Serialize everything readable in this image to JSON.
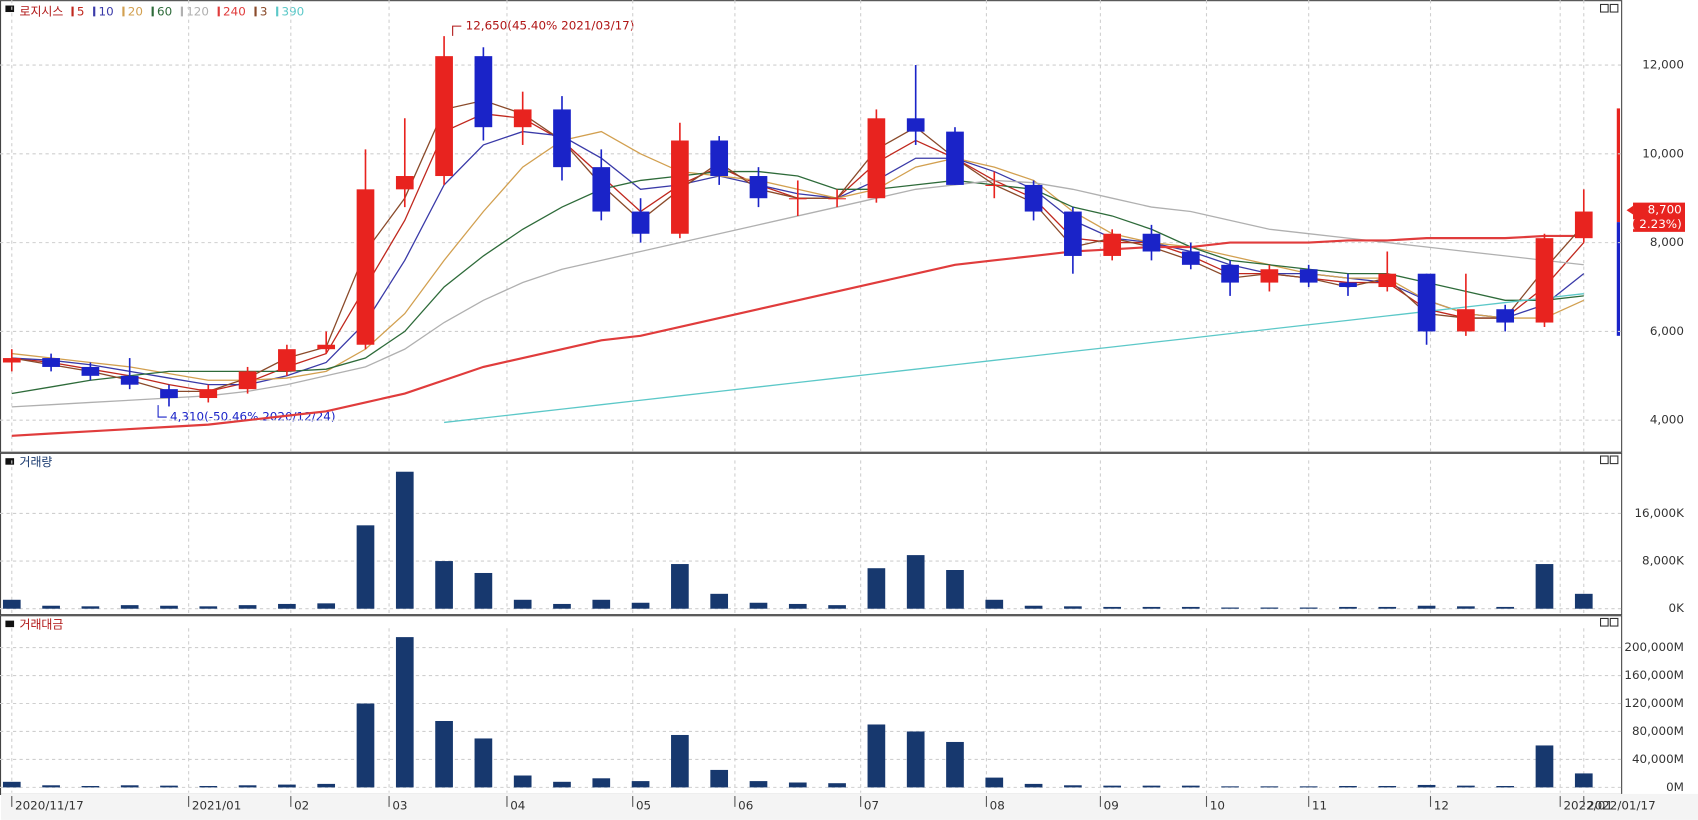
{
  "chart_data": [
    {
      "type": "candlestick",
      "title": "로지시스",
      "xlim": [
        -0.3,
        40.95
      ],
      "open": [
        5300,
        5400,
        5200,
        5000,
        4700,
        4500,
        4700,
        5100,
        5600,
        5700,
        9200,
        9500,
        12200,
        10600,
        11000,
        9700,
        8700,
        8200,
        10300,
        9500,
        9000,
        9000,
        9000,
        10800,
        10500,
        9300,
        9300,
        8700,
        7700,
        8200,
        7800,
        7500,
        7100,
        7400,
        7100,
        7000,
        7300,
        6000,
        6500,
        6200,
        8100
      ],
      "high": [
        5600,
        5500,
        5300,
        5400,
        4800,
        4800,
        5200,
        5700,
        6000,
        10100,
        10800,
        12650,
        12400,
        11400,
        11300,
        10100,
        9000,
        10700,
        10400,
        9700,
        9400,
        9200,
        11000,
        12000,
        10600,
        9600,
        9400,
        8800,
        8300,
        8400,
        8000,
        7600,
        7500,
        7500,
        7300,
        7800,
        7300,
        7300,
        6600,
        8200,
        9200
      ],
      "low": [
        5100,
        5100,
        4900,
        4700,
        4310,
        4400,
        4600,
        5000,
        5500,
        5600,
        8800,
        9300,
        10300,
        10200,
        9400,
        8500,
        8000,
        8100,
        9300,
        8800,
        8600,
        8800,
        8900,
        10200,
        9300,
        9000,
        8500,
        7300,
        7600,
        7600,
        7400,
        6800,
        6900,
        7000,
        6800,
        6900,
        5700,
        5900,
        6000,
        6100,
        8000
      ],
      "close": [
        5400,
        5200,
        5000,
        4800,
        4500,
        4700,
        5100,
        5600,
        5700,
        9200,
        9500,
        12200,
        10600,
        11000,
        9700,
        8700,
        8200,
        10300,
        9500,
        9000,
        9000,
        9000,
        10800,
        10500,
        9300,
        9300,
        8700,
        7700,
        8200,
        7800,
        7500,
        7100,
        7400,
        7100,
        7000,
        7300,
        6000,
        6500,
        6200,
        8100,
        8700
      ],
      "up_color": "#e8231f",
      "down_color": "#1a23c8",
      "series": [
        {
          "name": "5",
          "color": "#c0281e",
          "values": [
            5400,
            5300,
            5150,
            5000,
            4800,
            4650,
            4850,
            5200,
            5500,
            7000,
            8500,
            10500,
            10900,
            10800,
            10300,
            9500,
            8700,
            9300,
            9700,
            9300,
            9000,
            9000,
            9800,
            10300,
            9900,
            9400,
            9000,
            8100,
            8000,
            8000,
            7700,
            7300,
            7300,
            7200,
            7100,
            7100,
            6500,
            6300,
            6300,
            7000,
            8000
          ]
        },
        {
          "name": "10",
          "color": "#3a3aa8",
          "values": [
            5400,
            5350,
            5250,
            5100,
            4950,
            4800,
            4800,
            5000,
            5300,
            6200,
            7600,
            9300,
            10200,
            10500,
            10400,
            9900,
            9200,
            9300,
            9500,
            9300,
            9100,
            9000,
            9400,
            9900,
            9900,
            9600,
            9200,
            8500,
            8100,
            8000,
            7800,
            7500,
            7300,
            7300,
            7200,
            7100,
            6700,
            6400,
            6300,
            6600,
            7300
          ]
        },
        {
          "name": "20",
          "color": "#d2a050",
          "values": [
            5500,
            5400,
            5300,
            5200,
            5050,
            4900,
            4900,
            4950,
            5100,
            5600,
            6400,
            7600,
            8700,
            9700,
            10300,
            10500,
            10000,
            9600,
            9500,
            9400,
            9200,
            9000,
            9200,
            9700,
            9900,
            9700,
            9400,
            8700,
            8200,
            8000,
            7900,
            7700,
            7500,
            7300,
            7200,
            7200,
            6700,
            6400,
            6300,
            6300,
            6700
          ]
        },
        {
          "name": "60",
          "color": "#2e6b3a",
          "values": [
            4600,
            4750,
            4900,
            5000,
            5100,
            5100,
            5100,
            5100,
            5150,
            5400,
            6000,
            7000,
            7700,
            8300,
            8800,
            9200,
            9400,
            9500,
            9600,
            9600,
            9500,
            9200,
            9200,
            9300,
            9400,
            9300,
            9200,
            8800,
            8600,
            8300,
            7900,
            7600,
            7500,
            7400,
            7300,
            7300,
            7100,
            6900,
            6700,
            6700,
            6800
          ]
        },
        {
          "name": "120",
          "color": "#b0b0b0",
          "values": [
            4300,
            4350,
            4400,
            4450,
            4500,
            4550,
            4650,
            4800,
            5000,
            5200,
            5600,
            6200,
            6700,
            7100,
            7400,
            7600,
            7800,
            8000,
            8200,
            8400,
            8600,
            8800,
            9000,
            9200,
            9300,
            9400,
            9350,
            9200,
            9000,
            8800,
            8700,
            8500,
            8300,
            8200,
            8100,
            8000,
            7900,
            7800,
            7700,
            7600,
            7500
          ]
        },
        {
          "name": "240",
          "color": "#e03c3c",
          "values": [
            3650,
            3700,
            3750,
            3800,
            3850,
            3900,
            4000,
            4100,
            4200,
            4400,
            4600,
            4900,
            5200,
            5400,
            5600,
            5800,
            5900,
            6100,
            6300,
            6500,
            6700,
            6900,
            7100,
            7300,
            7500,
            7600,
            7700,
            7800,
            7850,
            7900,
            7900,
            8000,
            8000,
            8000,
            8050,
            8050,
            8100,
            8100,
            8100,
            8150,
            8150
          ]
        },
        {
          "name": "3",
          "color": "#8a4a2a",
          "values": [
            5400,
            5250,
            5100,
            4900,
            4650,
            4650,
            4950,
            5400,
            5650,
            7800,
            9000,
            11000,
            11200,
            10900,
            10300,
            9300,
            8500,
            9200,
            9800,
            9200,
            9000,
            9000,
            10100,
            10600,
            9900,
            9300,
            8900,
            7900,
            8100,
            7900,
            7600,
            7200,
            7300,
            7200,
            7000,
            7200,
            6400,
            6300,
            6300,
            7400,
            8400
          ]
        },
        {
          "name": "390",
          "color": "#5cc8c8",
          "values": [
            null,
            null,
            null,
            null,
            null,
            null,
            null,
            null,
            null,
            null,
            null,
            3950,
            4050,
            4150,
            4250,
            4350,
            4450,
            4550,
            4650,
            4750,
            4850,
            4950,
            5050,
            5150,
            5250,
            5350,
            5450,
            5550,
            5650,
            5750,
            5850,
            5950,
            6050,
            6150,
            6250,
            6350,
            6450,
            6550,
            6650,
            6750,
            6850
          ]
        }
      ],
      "ylim": [
        3340,
        13340
      ],
      "yticks": [
        {
          "value": 4000,
          "label": "4,000"
        },
        {
          "value": 6000,
          "label": "6,000"
        },
        {
          "value": 8000,
          "label": "8,000"
        },
        {
          "value": 10000,
          "label": "10,000"
        },
        {
          "value": 12000,
          "label": "12,000"
        }
      ],
      "grid": true,
      "annotations": [
        "12,650(45.40% 2021/03/17)",
        "4,310(-50.46% 2020/12/24)"
      ],
      "last_price_label": "8,700",
      "last_change_label": "( 2.23%)"
    },
    {
      "type": "bar",
      "title": "거래량",
      "color": "#17386e",
      "xlim": [
        -0.3,
        40.95
      ],
      "values": [
        1500,
        500,
        400,
        600,
        500,
        400,
        600,
        800,
        900,
        14000,
        23000,
        8000,
        6000,
        1500,
        800,
        1500,
        1000,
        7500,
        2500,
        1000,
        800,
        600,
        6800,
        9000,
        6500,
        1500,
        500,
        400,
        300,
        300,
        300,
        200,
        200,
        200,
        300,
        300,
        500,
        400,
        300,
        7500,
        2500
      ],
      "ylim": [
        0,
        24000
      ],
      "yticks": [
        {
          "value": 0,
          "label": "0K"
        },
        {
          "value": 8000,
          "label": "8,000K"
        },
        {
          "value": 16000,
          "label": "16,000K"
        }
      ],
      "grid": true
    },
    {
      "type": "bar",
      "title": "거래대금",
      "color": "#17386e",
      "xlim": [
        -0.3,
        40.95
      ],
      "values": [
        8000,
        3000,
        2000,
        3000,
        2500,
        2000,
        3000,
        4000,
        5000,
        120000,
        215000,
        95000,
        70000,
        17000,
        8000,
        13000,
        9000,
        75000,
        25000,
        9000,
        7000,
        6000,
        90000,
        80000,
        65000,
        14000,
        5000,
        3000,
        2500,
        2500,
        2500,
        1500,
        1500,
        1500,
        2000,
        2000,
        3500,
        2500,
        2000,
        60000,
        20000
      ],
      "ylim": [
        0,
        220000
      ],
      "yticks": [
        {
          "value": 0,
          "label": "0M"
        },
        {
          "value": 40000,
          "label": "40,000M"
        },
        {
          "value": 80000,
          "label": "80,000M"
        },
        {
          "value": 120000,
          "label": "120,000M"
        },
        {
          "value": 160000,
          "label": "160,000M"
        },
        {
          "value": 200000,
          "label": "200,000M"
        }
      ],
      "grid": true,
      "xticks": [
        {
          "value": 0,
          "label": "2020/11/17"
        },
        {
          "value": 4.5,
          "label": "2021/01"
        },
        {
          "value": 7.1,
          "label": "02"
        },
        {
          "value": 9.6,
          "label": "03"
        },
        {
          "value": 12.6,
          "label": "04"
        },
        {
          "value": 15.8,
          "label": "05"
        },
        {
          "value": 18.4,
          "label": "06"
        },
        {
          "value": 21.6,
          "label": "07"
        },
        {
          "value": 24.8,
          "label": "08"
        },
        {
          "value": 27.7,
          "label": "09"
        },
        {
          "value": 30.4,
          "label": "10"
        },
        {
          "value": 33.0,
          "label": "11"
        },
        {
          "value": 36.1,
          "label": "12"
        },
        {
          "value": 39.4,
          "label": "2022/01"
        },
        {
          "value": 40,
          "label": "2022/01/17"
        }
      ]
    }
  ]
}
